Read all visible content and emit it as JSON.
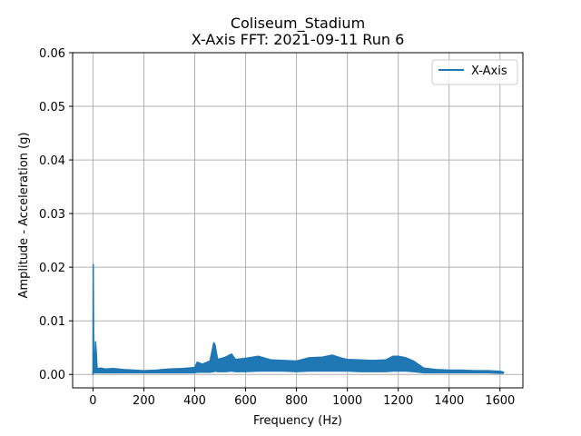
{
  "chart_data": {
    "type": "line",
    "title": "Coliseum_Stadium",
    "subtitle": "X-Axis FFT: 2021-09-11 Run 6",
    "xlabel": "Frequency (Hz)",
    "ylabel": "Amplitude - Acceleration (g)",
    "xlim": [
      -80,
      1690
    ],
    "ylim": [
      -0.0025,
      0.06
    ],
    "xticks": [
      0,
      200,
      400,
      600,
      800,
      1000,
      1200,
      1400,
      1600
    ],
    "yticks": [
      0.0,
      0.01,
      0.02,
      0.03,
      0.04,
      0.05,
      0.06
    ],
    "xtick_labels": [
      "0",
      "200",
      "400",
      "600",
      "800",
      "1000",
      "1200",
      "1400",
      "1600"
    ],
    "ytick_labels": [
      "0.00",
      "0.01",
      "0.02",
      "0.03",
      "0.04",
      "0.05",
      "0.06"
    ],
    "grid": true,
    "legend_position": "top-right",
    "series": [
      {
        "name": "X-Axis",
        "color": "#1f77b4",
        "x": [
          0,
          1,
          3,
          6,
          10,
          13,
          16,
          20,
          30,
          50,
          80,
          120,
          160,
          200,
          250,
          300,
          350,
          400,
          410,
          430,
          460,
          475,
          480,
          490,
          520,
          545,
          560,
          600,
          650,
          700,
          750,
          800,
          850,
          900,
          940,
          980,
          1000,
          1050,
          1100,
          1150,
          1180,
          1200,
          1230,
          1260,
          1300,
          1350,
          1400,
          1450,
          1500,
          1550,
          1600,
          1615
        ],
        "y": [
          0.0,
          0.0205,
          0.001,
          0.0012,
          0.0061,
          0.004,
          0.0012,
          0.0011,
          0.0012,
          0.001,
          0.0011,
          0.0009,
          0.0008,
          0.0007,
          0.0008,
          0.001,
          0.0011,
          0.0013,
          0.0023,
          0.0019,
          0.0025,
          0.0059,
          0.0055,
          0.0028,
          0.0032,
          0.0038,
          0.0028,
          0.003,
          0.0034,
          0.0027,
          0.0026,
          0.0025,
          0.0031,
          0.0032,
          0.0036,
          0.003,
          0.0028,
          0.0027,
          0.0026,
          0.0027,
          0.0034,
          0.0034,
          0.0031,
          0.0025,
          0.0012,
          0.0009,
          0.0008,
          0.0008,
          0.0007,
          0.0007,
          0.0006,
          0.0004
        ],
        "y_lower": [
          0.0,
          0.0,
          0.0002,
          0.0002,
          0.0002,
          0.0002,
          0.0002,
          0.0002,
          0.0002,
          0.0002,
          0.0002,
          0.0002,
          0.0002,
          0.0002,
          0.0002,
          0.0002,
          0.0002,
          0.0002,
          0.0003,
          0.0003,
          0.0003,
          0.0004,
          0.0005,
          0.0004,
          0.0004,
          0.0005,
          0.0004,
          0.0004,
          0.0005,
          0.0005,
          0.0005,
          0.0004,
          0.0005,
          0.0005,
          0.0005,
          0.0005,
          0.0005,
          0.0004,
          0.0004,
          0.0004,
          0.0005,
          0.0005,
          0.0005,
          0.0004,
          0.0002,
          0.0002,
          0.0002,
          0.0002,
          0.0002,
          0.0002,
          0.0001,
          0.0001
        ]
      }
    ]
  }
}
